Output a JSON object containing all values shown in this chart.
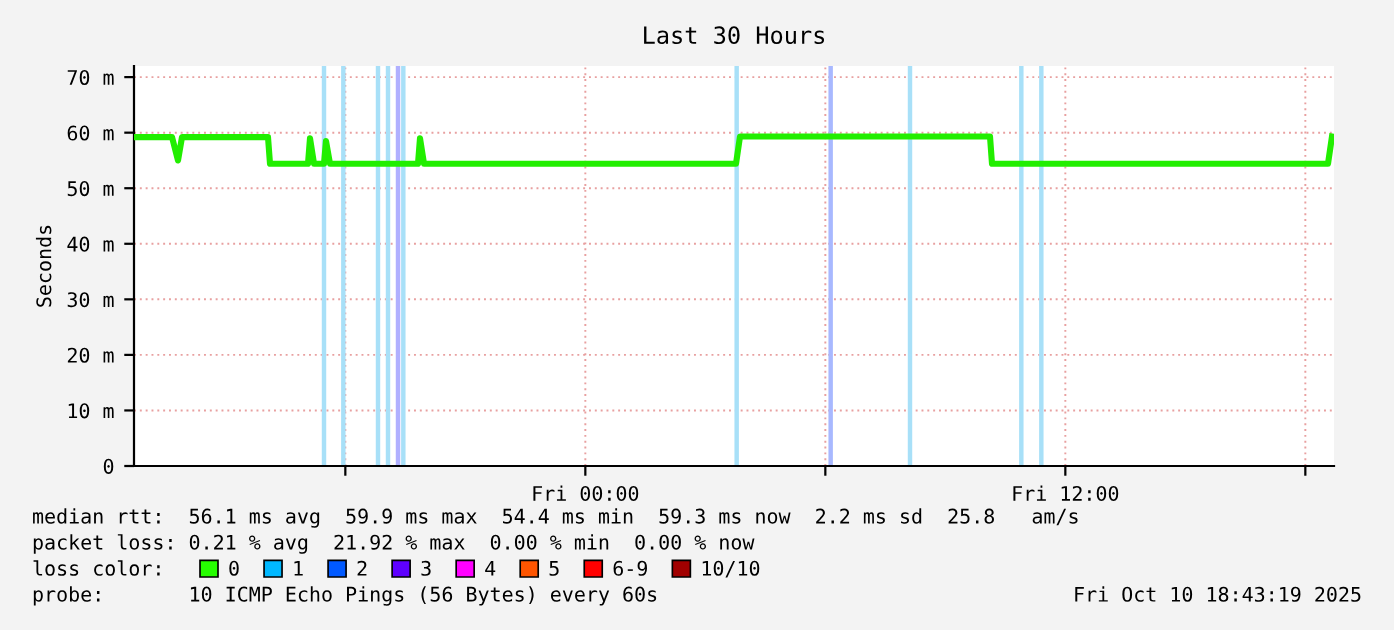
{
  "chart_data": {
    "type": "line",
    "title": "Last 30 Hours",
    "ylabel": "Seconds",
    "x": [
      "2025-10-09T12:43",
      "2025-10-09T13:40",
      "2025-10-09T13:49",
      "2025-10-09T13:55",
      "2025-10-09T16:04",
      "2025-10-09T16:07",
      "2025-10-09T17:04",
      "2025-10-09T17:07",
      "2025-10-09T17:13",
      "2025-10-09T17:28",
      "2025-10-09T17:31",
      "2025-10-09T17:37",
      "2025-10-09T19:49",
      "2025-10-09T19:52",
      "2025-10-09T19:58",
      "2025-10-10T03:46",
      "2025-10-10T03:52",
      "2025-10-10T10:07",
      "2025-10-10T10:10",
      "2025-10-10T18:34",
      "2025-10-10T18:40"
    ],
    "series": [
      {
        "color": "#22ee00",
        "values": [
          59.2,
          59.2,
          55,
          59.2,
          59.2,
          54.4,
          54.4,
          59,
          54.4,
          54.4,
          58.5,
          54.4,
          54.4,
          59,
          54.4,
          54.4,
          59.3,
          59.3,
          54.4,
          54.4,
          59.3
        ]
      },
      {
        "name": "0",
        "color": "#26ff00",
        "values": [
          null,
          null,
          null,
          null,
          null,
          null,
          null,
          null,
          null,
          null,
          null,
          null,
          null,
          null,
          null,
          null,
          null,
          null,
          null,
          null,
          null
        ]
      },
      {
        "name": "1",
        "color": "#00b8ff",
        "values": [
          null,
          null,
          null,
          null,
          null,
          null,
          null,
          null,
          null,
          null,
          null,
          null,
          null,
          null,
          null,
          null,
          null,
          null,
          null,
          null,
          null
        ]
      },
      {
        "name": "2",
        "color": "#0059ff",
        "values": [
          null,
          null,
          null,
          null,
          null,
          null,
          null,
          null,
          null,
          null,
          null,
          null,
          null,
          null,
          null,
          null,
          null,
          null,
          null,
          null,
          null
        ]
      },
      {
        "name": "3",
        "color": "#5e00ff",
        "values": [
          null,
          null,
          null,
          null,
          null,
          null,
          null,
          null,
          null,
          null,
          null,
          null,
          null,
          null,
          null,
          null,
          null,
          null,
          null,
          null,
          null
        ]
      },
      {
        "name": "4",
        "color": "#ff00ff",
        "values": [
          null,
          null,
          null,
          null,
          null,
          null,
          null,
          null,
          null,
          null,
          null,
          null,
          null,
          null,
          null,
          null,
          null,
          null,
          null,
          null,
          null
        ]
      },
      {
        "name": "5",
        "color": "#ff5500",
        "values": [
          null,
          null,
          null,
          null,
          null,
          null,
          null,
          null,
          null,
          null,
          null,
          null,
          null,
          null,
          null,
          null,
          null,
          null,
          null,
          null,
          null
        ]
      },
      {
        "name": "6-9",
        "color": "#ff0000",
        "values": [
          null,
          null,
          null,
          null,
          null,
          null,
          null,
          null,
          null,
          null,
          null,
          null,
          null,
          null,
          null,
          null,
          null,
          null,
          null,
          null,
          null
        ]
      },
      {
        "name": "10/10",
        "color": "#a10000",
        "values": [
          null,
          null,
          null,
          null,
          null,
          null,
          null,
          null,
          null,
          null,
          null,
          null,
          null,
          null,
          null,
          null,
          null,
          null,
          null,
          null,
          null
        ]
      }
    ],
    "xlim": [
      "2025-10-09T12:43",
      "2025-10-10T18:43"
    ],
    "xticks": [
      {
        "value": "2025-10-09T18:00",
        "label": null
      },
      {
        "value": "2025-10-10T00:00",
        "label": "Fri 00:00"
      },
      {
        "value": "2025-10-10T06:00",
        "label": null
      },
      {
        "value": "2025-10-10T12:00",
        "label": "Fri 12:00"
      },
      {
        "value": "2025-10-10T18:00",
        "label": null
      }
    ],
    "ylim": [
      0,
      72
    ],
    "yticks": [
      0,
      {
        "value": 10,
        "label": "10 m"
      },
      {
        "value": 20,
        "label": "20 m"
      },
      {
        "value": 30,
        "label": "30 m"
      },
      {
        "value": 40,
        "label": "40 m"
      },
      {
        "value": 50,
        "label": "50 m"
      },
      {
        "value": 60,
        "label": "60 m"
      },
      {
        "value": 70,
        "label": "70 m"
      }
    ],
    "grid": true,
    "legend": "bottom",
    "ref_lines": [
      {
        "axis": "x",
        "value": "2025-10-09T17:28",
        "color": "#a8e0f8"
      },
      {
        "axis": "x",
        "value": "2025-10-09T17:57",
        "color": "#a8e0f8"
      },
      {
        "axis": "x",
        "value": "2025-10-09T18:49",
        "color": "#a8e0f8"
      },
      {
        "axis": "x",
        "value": "2025-10-09T19:04",
        "color": "#a8e0f8"
      },
      {
        "axis": "x",
        "value": "2025-10-09T19:19",
        "color": "#b0b0ff"
      },
      {
        "axis": "x",
        "value": "2025-10-09T19:27",
        "color": "#a8e0f8"
      },
      {
        "axis": "x",
        "value": "2025-10-10T03:47",
        "color": "#a8e0f8"
      },
      {
        "axis": "x",
        "value": "2025-10-10T06:08",
        "color": "#a8b8ff"
      },
      {
        "axis": "x",
        "value": "2025-10-10T08:07",
        "color": "#a8e0f8"
      },
      {
        "axis": "x",
        "value": "2025-10-10T10:54",
        "color": "#a8e0f8"
      },
      {
        "axis": "x",
        "value": "2025-10-10T11:24",
        "color": "#a8e0f8"
      }
    ],
    "annotations": [
      "median rtt:  56.1 ms avg  59.9 ms max  54.4 ms min  59.3 ms now  2.2 ms sd  25.8   am/s",
      "packet loss: 0.21 % avg  21.92 % max  0.00 % min  0.00 % now",
      "loss color:",
      "probe:       10 ICMP Echo Pings (56 Bytes) every 60s",
      "Fri Oct 10 18:43:19 2025"
    ]
  }
}
